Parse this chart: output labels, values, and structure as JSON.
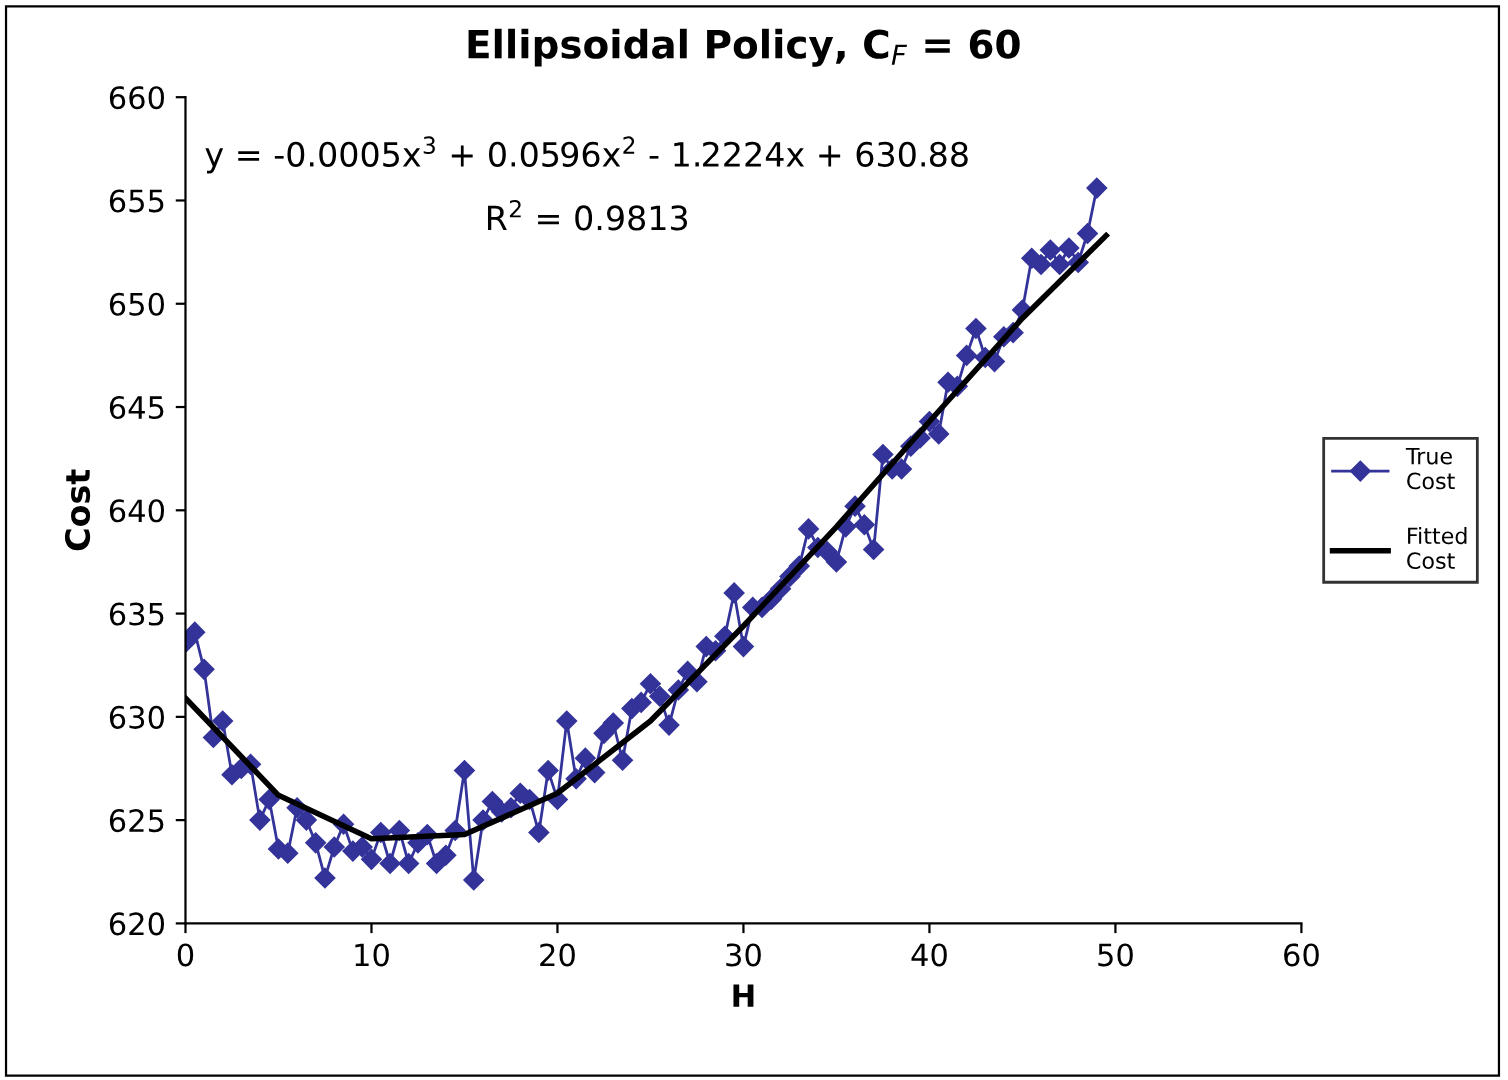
{
  "chart_data": {
    "type": "line",
    "title": "Ellipsoidal Policy, C$_{F}$ = 60",
    "xlabel": "H",
    "ylabel": "Cost",
    "annotations": [
      "y = -0.0005x$^{3}$ + 0.0596x$^{2}$ - 1.2224x + 630.88",
      "R$^{2}$ = 0.9813"
    ],
    "series": [
      {
        "name": "True Cost",
        "color": "#333399",
        "marker": "diamond",
        "x": [
          0,
          0.5,
          1,
          1.5,
          2,
          2.5,
          3,
          3.5,
          4,
          4.5,
          5,
          5.5,
          6,
          6.5,
          7,
          7.5,
          8,
          8.5,
          9,
          9.5,
          10,
          10.5,
          11,
          11.5,
          12,
          12.5,
          13,
          13.5,
          14,
          14.5,
          15,
          15.5,
          16,
          16.5,
          17,
          17.5,
          18,
          18.5,
          19,
          19.5,
          20,
          20.5,
          21,
          21.5,
          22,
          22.5,
          23,
          23.5,
          24,
          24.5,
          25,
          25.5,
          26,
          26.5,
          27,
          27.5,
          28,
          28.5,
          29,
          29.5,
          30,
          30.5,
          31,
          31.5,
          32,
          32.5,
          33,
          33.5,
          34,
          34.5,
          35,
          35.5,
          36,
          36.5,
          37,
          37.5,
          38,
          38.5,
          39,
          39.5,
          40,
          40.5,
          41,
          41.5,
          42,
          42.5,
          43,
          43.5,
          44,
          44.5,
          45,
          45.5,
          46,
          46.5,
          47,
          47.5,
          48,
          48.5,
          49
        ],
        "values": [
          633.6,
          634.1,
          632.3,
          629.0,
          629.8,
          627.2,
          627.5,
          627.7,
          625.0,
          626.0,
          623.6,
          623.4,
          625.6,
          625.0,
          623.9,
          622.2,
          623.7,
          624.8,
          623.5,
          623.7,
          623.1,
          624.4,
          622.9,
          624.5,
          622.9,
          623.9,
          624.3,
          622.9,
          623.3,
          624.5,
          627.4,
          622.1,
          625.0,
          625.9,
          625.4,
          625.6,
          626.3,
          626.0,
          624.4,
          627.4,
          626.0,
          629.8,
          627.0,
          628.0,
          627.3,
          629.2,
          629.7,
          627.9,
          630.4,
          630.7,
          631.6,
          631.0,
          629.6,
          631.3,
          632.2,
          631.7,
          633.4,
          633.2,
          633.9,
          636.0,
          633.4,
          635.3,
          635.3,
          635.7,
          636.2,
          636.8,
          637.3,
          639.1,
          638.2,
          638.0,
          637.5,
          639.2,
          640.2,
          639.3,
          638.1,
          642.7,
          642.0,
          642.0,
          643.1,
          643.5,
          644.3,
          643.7,
          646.2,
          646.0,
          647.5,
          648.8,
          647.4,
          647.2,
          648.4,
          648.6,
          649.7,
          652.2,
          651.9,
          652.6,
          651.9,
          652.7,
          652.0,
          653.4,
          655.6
        ]
      },
      {
        "name": "Fitted Cost",
        "color": "#000000",
        "marker": "none",
        "x": [
          0,
          5,
          10,
          15,
          20,
          25,
          30,
          35,
          40,
          45,
          49.5
        ],
        "values": [
          630.9,
          626.2,
          624.1,
          624.3,
          626.3,
          629.8,
          634.4,
          639.2,
          644.3,
          649.3,
          653.3
        ]
      }
    ],
    "xlim": [
      0,
      60
    ],
    "xticks": [
      0,
      10,
      20,
      30,
      40,
      50,
      60
    ],
    "ylim": [
      620,
      660
    ],
    "yticks": [
      620,
      625,
      630,
      635,
      640,
      645,
      650,
      655,
      660
    ],
    "grid": false,
    "legend": "right",
    "line_style": "solid"
  }
}
